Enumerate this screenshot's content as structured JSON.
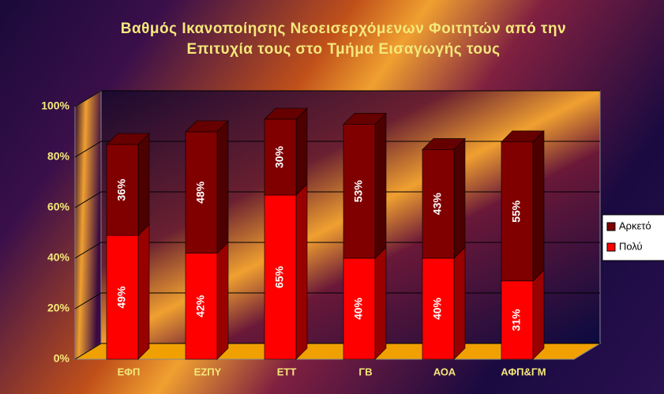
{
  "chart_data": {
    "type": "stacked-bar-3d",
    "title": "Βαθμός Ικανοποίησης Νεοεισερχόμενων Φοιτητών από την Επιτυχία τους στο Τμήμα Εισαγωγής τους",
    "categories": [
      "ΕΦΠ",
      "ΕΖΠΥ",
      "ΕΤΤ",
      "ΓΒ",
      "ΑΟΑ",
      "ΑΦΠ&ΓΜ"
    ],
    "series": [
      {
        "name": "Πολύ",
        "color": "#ff0000",
        "values": [
          49,
          42,
          65,
          40,
          40,
          31
        ],
        "value_labels": [
          "49%",
          "42%",
          "65%",
          "40%",
          "40%",
          "31%"
        ]
      },
      {
        "name": "Αρκετό",
        "color": "#800000",
        "values": [
          36,
          48,
          30,
          53,
          43,
          55
        ],
        "value_labels": [
          "36%",
          "48%",
          "30%",
          "53%",
          "43%",
          "55%"
        ]
      }
    ],
    "ylim": [
      0,
      100
    ],
    "yticks": [
      {
        "value": 0,
        "label": "0%"
      },
      {
        "value": 20,
        "label": "20%"
      },
      {
        "value": 40,
        "label": "40%"
      },
      {
        "value": 60,
        "label": "60%"
      },
      {
        "value": 80,
        "label": "80%"
      },
      {
        "value": 100,
        "label": "100%"
      }
    ],
    "grid": true
  }
}
